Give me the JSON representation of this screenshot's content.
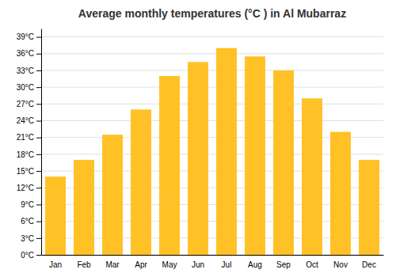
{
  "chart_data": {
    "type": "bar",
    "title": "Average monthly temperatures (°C ) in Al Mubarraz",
    "categories": [
      "Jan",
      "Feb",
      "Mar",
      "Apr",
      "May",
      "Jun",
      "Jul",
      "Aug",
      "Sep",
      "Oct",
      "Nov",
      "Dec"
    ],
    "values": [
      14,
      17,
      21.5,
      26,
      32,
      34.5,
      37,
      35.5,
      33,
      28,
      22,
      17
    ],
    "color": "#FFC125",
    "ylim": [
      0,
      40.5
    ],
    "yticks": [
      {
        "value": 0,
        "label": "0°C"
      },
      {
        "value": 3,
        "label": "3°C"
      },
      {
        "value": 6,
        "label": "6°C"
      },
      {
        "value": 9,
        "label": "9°C"
      },
      {
        "value": 12,
        "label": "12°C"
      },
      {
        "value": 15,
        "label": "15°C"
      },
      {
        "value": 18,
        "label": "18°C"
      },
      {
        "value": 21,
        "label": "21°C"
      },
      {
        "value": 24,
        "label": "24°C"
      },
      {
        "value": 27,
        "label": "27°C"
      },
      {
        "value": 30,
        "label": "30°C"
      },
      {
        "value": 33,
        "label": "33°C"
      },
      {
        "value": 36,
        "label": "36°C"
      },
      {
        "value": 39,
        "label": "39°C"
      }
    ],
    "grid": true
  }
}
